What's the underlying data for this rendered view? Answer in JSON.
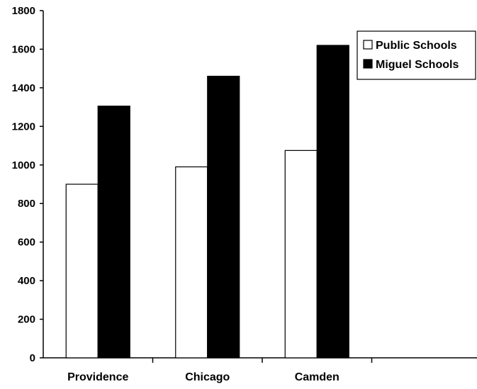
{
  "chart_data": {
    "type": "bar",
    "title": "",
    "xlabel": "",
    "ylabel": "",
    "categories": [
      "Providence",
      "Chicago",
      "Camden",
      ""
    ],
    "series": [
      {
        "name": "Public Schools",
        "color": "#ffffff",
        "values": [
          900,
          990,
          1075,
          null
        ]
      },
      {
        "name": "Miguel Schools",
        "color": "#000000",
        "values": [
          1305,
          1460,
          1620,
          null
        ]
      }
    ],
    "ylim": [
      0,
      1800
    ],
    "yticks": [
      0,
      200,
      400,
      600,
      800,
      1000,
      1200,
      1400,
      1600,
      1800
    ],
    "grid": false,
    "legend_position": "top-right"
  }
}
